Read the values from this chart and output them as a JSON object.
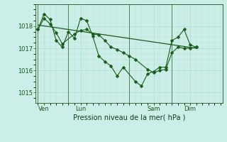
{
  "title": "",
  "xlabel": "Pression niveau de la mer( hPa )",
  "background_color": "#cceee8",
  "grid_color_major": "#aaddcc",
  "grid_color_minor": "#bbddd4",
  "line_color": "#1a5c1a",
  "marker": "D",
  "marker_size": 2.5,
  "ylim": [
    1014.55,
    1019.0
  ],
  "yticks": [
    1015,
    1016,
    1017,
    1018
  ],
  "day_labels": [
    "Ven",
    "Lun",
    "Sam",
    "Dim"
  ],
  "day_positions": [
    0.5,
    3.5,
    9.5,
    12.5
  ],
  "vline_positions": [
    0,
    2.5,
    7.5,
    11.0
  ],
  "xlim": [
    -0.2,
    15.2
  ],
  "series1_x": [
    0.0,
    0.5,
    1.0,
    1.5,
    2.0,
    3.0,
    3.5,
    4.0,
    4.5,
    5.0,
    5.5,
    6.0,
    6.5,
    7.0,
    7.5,
    8.0,
    9.0,
    9.5,
    10.0,
    10.5,
    11.0,
    11.5,
    12.0,
    12.5,
    13.0
  ],
  "series1_y": [
    1017.85,
    1018.35,
    1018.1,
    1017.7,
    1017.2,
    1017.65,
    1017.8,
    1017.85,
    1017.65,
    1017.6,
    1017.35,
    1017.05,
    1016.95,
    1016.8,
    1016.65,
    1016.5,
    1016.05,
    1015.9,
    1016.0,
    1016.05,
    1016.8,
    1017.05,
    1017.0,
    1017.0,
    1017.05
  ],
  "series2_x": [
    0.0,
    0.5,
    1.0,
    1.5,
    2.0,
    2.5,
    3.0,
    3.5,
    4.0,
    4.5,
    5.0,
    5.5,
    6.0,
    6.5,
    7.0,
    8.0,
    8.5,
    9.0,
    9.5,
    10.0,
    10.5,
    11.0,
    11.5,
    12.0,
    12.5,
    13.0
  ],
  "series2_y": [
    1017.85,
    1018.55,
    1018.3,
    1017.35,
    1017.05,
    1017.75,
    1017.45,
    1018.35,
    1018.25,
    1017.55,
    1016.65,
    1016.4,
    1016.2,
    1015.75,
    1016.15,
    1015.5,
    1015.3,
    1015.85,
    1015.95,
    1016.15,
    1016.15,
    1017.35,
    1017.5,
    1017.85,
    1017.15,
    1017.05
  ],
  "series3_x": [
    0.0,
    13.0
  ],
  "series3_y": [
    1018.05,
    1017.0
  ]
}
